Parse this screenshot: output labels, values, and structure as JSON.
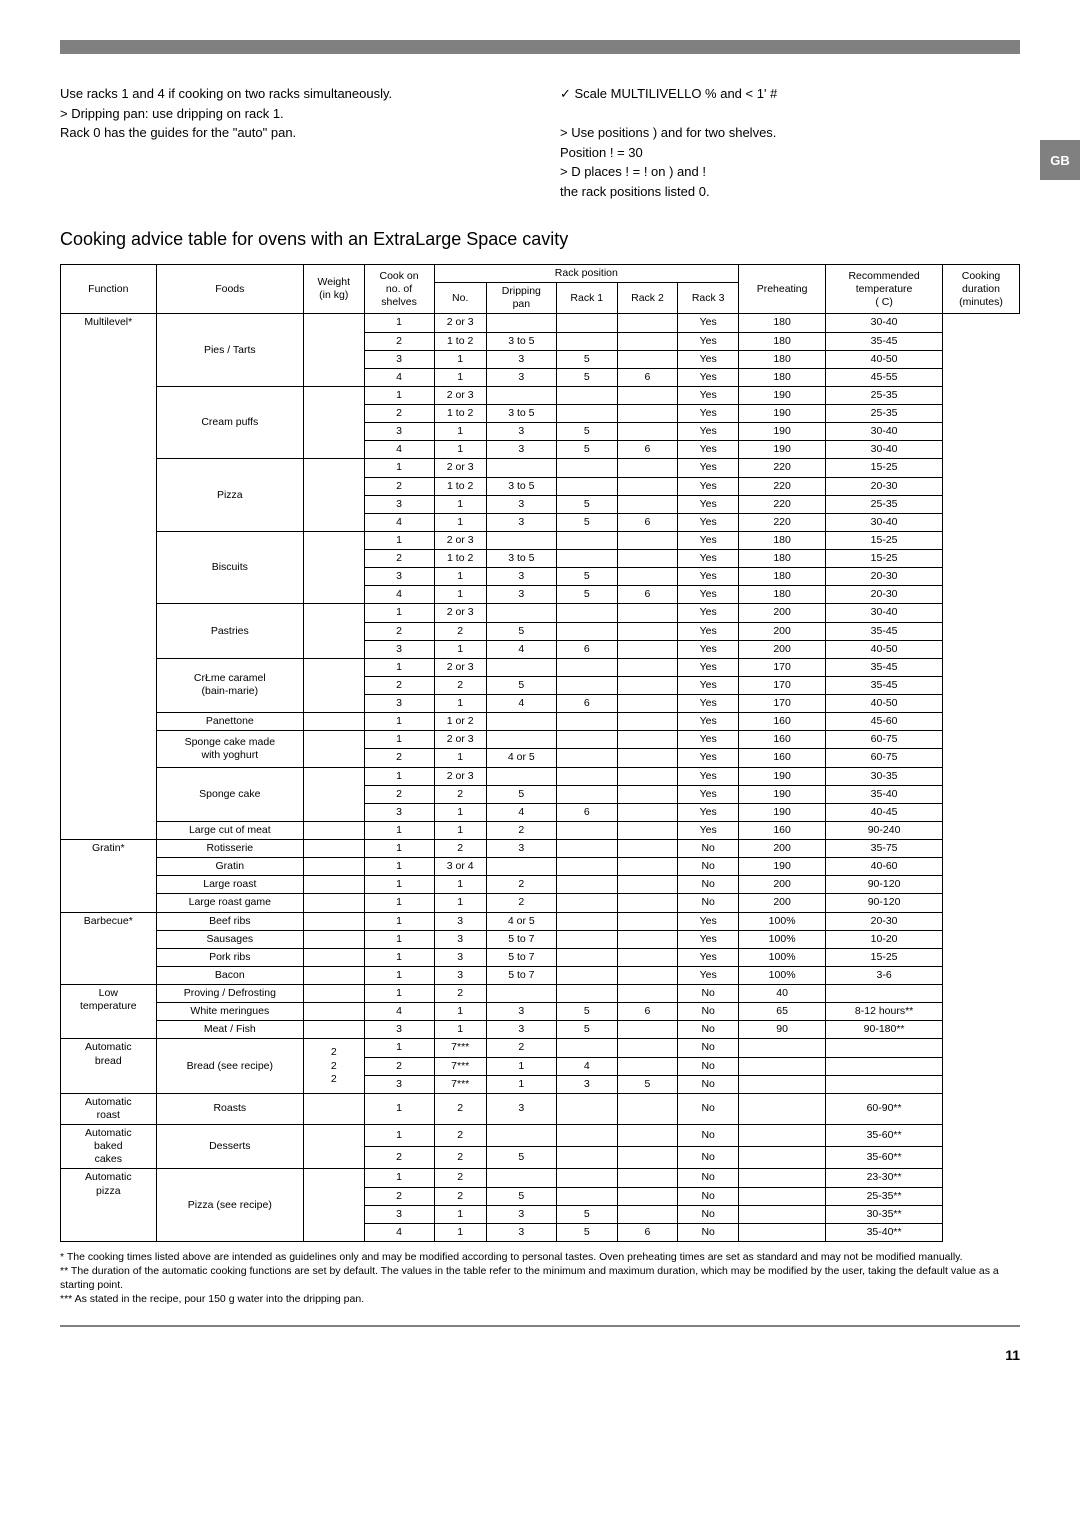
{
  "gb_label": "GB",
  "top_left_lines": [
    "Use racks 1 and 4 if cooking on two racks simultaneously.",
    "> Dripping pan: use dripping on rack 1.",
    "Rack 0 has the guides for the \"auto\" pan."
  ],
  "top_right_lines": [
    "✓ Scale MULTILIVELLO % and < 1' #",
    "",
    "> Use positions ) and for two shelves.",
    "Position   ! = 30",
    "> D places ! = ! on ) and !",
    " the rack positions listed 0."
  ],
  "table_title": "Cooking advice table for ovens with an ExtraLarge Space cavity",
  "headers": {
    "function": "Function",
    "foods": "Foods",
    "weight": "Weight\n(in kg)",
    "cook_on": "Cook on\nno. of\nshelves",
    "rack_position": "Rack position",
    "no": "No.",
    "dripping": "Dripping\npan",
    "rack1": "Rack 1",
    "rack2": "Rack 2",
    "rack3": "Rack 3",
    "preheating": "Preheating",
    "temp": "Recommended\ntemperature\n( C)",
    "duration": "Cooking\nduration\n(minutes)"
  },
  "functions": [
    {
      "name": "Multilevel*",
      "rows": [
        {
          "food": "Pies / Tarts",
          "sub": [
            {
              "no": "1",
              "dp": "2 or 3",
              "r1": "",
              "r2": "",
              "r3": "",
              "pre": "Yes",
              "t": "180",
              "d": "30-40"
            },
            {
              "no": "2",
              "dp": "1 to 2",
              "r1": "3 to 5",
              "r2": "",
              "r3": "",
              "pre": "Yes",
              "t": "180",
              "d": "35-45"
            },
            {
              "no": "3",
              "dp": "1",
              "r1": "3",
              "r2": "5",
              "r3": "",
              "pre": "Yes",
              "t": "180",
              "d": "40-50"
            },
            {
              "no": "4",
              "dp": "1",
              "r1": "3",
              "r2": "5",
              "r3": "6",
              "pre": "Yes",
              "t": "180",
              "d": "45-55"
            }
          ]
        },
        {
          "food": "Cream puffs",
          "sub": [
            {
              "no": "1",
              "dp": "2 or 3",
              "r1": "",
              "r2": "",
              "r3": "",
              "pre": "Yes",
              "t": "190",
              "d": "25-35"
            },
            {
              "no": "2",
              "dp": "1 to 2",
              "r1": "3 to 5",
              "r2": "",
              "r3": "",
              "pre": "Yes",
              "t": "190",
              "d": "25-35"
            },
            {
              "no": "3",
              "dp": "1",
              "r1": "3",
              "r2": "5",
              "r3": "",
              "pre": "Yes",
              "t": "190",
              "d": "30-40"
            },
            {
              "no": "4",
              "dp": "1",
              "r1": "3",
              "r2": "5",
              "r3": "6",
              "pre": "Yes",
              "t": "190",
              "d": "30-40"
            }
          ]
        },
        {
          "food": "Pizza",
          "sub": [
            {
              "no": "1",
              "dp": "2 or 3",
              "r1": "",
              "r2": "",
              "r3": "",
              "pre": "Yes",
              "t": "220",
              "d": "15-25"
            },
            {
              "no": "2",
              "dp": "1 to 2",
              "r1": "3 to 5",
              "r2": "",
              "r3": "",
              "pre": "Yes",
              "t": "220",
              "d": "20-30"
            },
            {
              "no": "3",
              "dp": "1",
              "r1": "3",
              "r2": "5",
              "r3": "",
              "pre": "Yes",
              "t": "220",
              "d": "25-35"
            },
            {
              "no": "4",
              "dp": "1",
              "r1": "3",
              "r2": "5",
              "r3": "6",
              "pre": "Yes",
              "t": "220",
              "d": "30-40"
            }
          ]
        },
        {
          "food": "Biscuits",
          "sub": [
            {
              "no": "1",
              "dp": "2 or 3",
              "r1": "",
              "r2": "",
              "r3": "",
              "pre": "Yes",
              "t": "180",
              "d": "15-25"
            },
            {
              "no": "2",
              "dp": "1 to 2",
              "r1": "3 to 5",
              "r2": "",
              "r3": "",
              "pre": "Yes",
              "t": "180",
              "d": "15-25"
            },
            {
              "no": "3",
              "dp": "1",
              "r1": "3",
              "r2": "5",
              "r3": "",
              "pre": "Yes",
              "t": "180",
              "d": "20-30"
            },
            {
              "no": "4",
              "dp": "1",
              "r1": "3",
              "r2": "5",
              "r3": "6",
              "pre": "Yes",
              "t": "180",
              "d": "20-30"
            }
          ]
        },
        {
          "food": "Pastries",
          "sub": [
            {
              "no": "1",
              "dp": "2 or 3",
              "r1": "",
              "r2": "",
              "r3": "",
              "pre": "Yes",
              "t": "200",
              "d": "30-40"
            },
            {
              "no": "2",
              "dp": "2",
              "r1": "5",
              "r2": "",
              "r3": "",
              "pre": "Yes",
              "t": "200",
              "d": "35-45"
            },
            {
              "no": "3",
              "dp": "1",
              "r1": "4",
              "r2": "6",
              "r3": "",
              "pre": "Yes",
              "t": "200",
              "d": "40-50"
            }
          ]
        },
        {
          "food": "CrŁme caramel\n(bain-marie)",
          "sub": [
            {
              "no": "1",
              "dp": "2 or 3",
              "r1": "",
              "r2": "",
              "r3": "",
              "pre": "Yes",
              "t": "170",
              "d": "35-45"
            },
            {
              "no": "2",
              "dp": "2",
              "r1": "5",
              "r2": "",
              "r3": "",
              "pre": "Yes",
              "t": "170",
              "d": "35-45"
            },
            {
              "no": "3",
              "dp": "1",
              "r1": "4",
              "r2": "6",
              "r3": "",
              "pre": "Yes",
              "t": "170",
              "d": "40-50"
            }
          ]
        },
        {
          "food": "Panettone",
          "sub": [
            {
              "no": "1",
              "dp": "1 or 2",
              "r1": "",
              "r2": "",
              "r3": "",
              "pre": "Yes",
              "t": "160",
              "d": "45-60"
            }
          ]
        },
        {
          "food": "Sponge cake made\nwith yoghurt",
          "sub": [
            {
              "no": "1",
              "dp": "2 or 3",
              "r1": "",
              "r2": "",
              "r3": "",
              "pre": "Yes",
              "t": "160",
              "d": "60-75"
            },
            {
              "no": "2",
              "dp": "1",
              "r1": "4 or 5",
              "r2": "",
              "r3": "",
              "pre": "Yes",
              "t": "160",
              "d": "60-75"
            }
          ]
        },
        {
          "food": "Sponge cake",
          "sub": [
            {
              "no": "1",
              "dp": "2 or 3",
              "r1": "",
              "r2": "",
              "r3": "",
              "pre": "Yes",
              "t": "190",
              "d": "30-35"
            },
            {
              "no": "2",
              "dp": "2",
              "r1": "5",
              "r2": "",
              "r3": "",
              "pre": "Yes",
              "t": "190",
              "d": "35-40"
            },
            {
              "no": "3",
              "dp": "1",
              "r1": "4",
              "r2": "6",
              "r3": "",
              "pre": "Yes",
              "t": "190",
              "d": "40-45"
            }
          ]
        },
        {
          "food": "Large cut of meat",
          "sub": [
            {
              "no": "1",
              "dp": "1",
              "r1": "2",
              "r2": "",
              "r3": "",
              "pre": "Yes",
              "t": "160",
              "d": "90-240"
            }
          ]
        }
      ]
    },
    {
      "name": "Gratin*",
      "rows": [
        {
          "food": "Rotisserie",
          "sub": [
            {
              "no": "1",
              "dp": "2",
              "r1": "3",
              "r2": "",
              "r3": "",
              "pre": "No",
              "t": "200",
              "d": "35-75"
            }
          ]
        },
        {
          "food": "Gratin",
          "sub": [
            {
              "no": "1",
              "dp": "3 or 4",
              "r1": "",
              "r2": "",
              "r3": "",
              "pre": "No",
              "t": "190",
              "d": "40-60"
            }
          ]
        },
        {
          "food": "Large roast",
          "sub": [
            {
              "no": "1",
              "dp": "1",
              "r1": "2",
              "r2": "",
              "r3": "",
              "pre": "No",
              "t": "200",
              "d": "90-120"
            }
          ]
        },
        {
          "food": "Large roast game",
          "sub": [
            {
              "no": "1",
              "dp": "1",
              "r1": "2",
              "r2": "",
              "r3": "",
              "pre": "No",
              "t": "200",
              "d": "90-120"
            }
          ]
        }
      ]
    },
    {
      "name": "Barbecue*",
      "rows": [
        {
          "food": "Beef ribs",
          "sub": [
            {
              "no": "1",
              "dp": "3",
              "r1": "4 or 5",
              "r2": "",
              "r3": "",
              "pre": "Yes",
              "t": "100%",
              "d": "20-30"
            }
          ]
        },
        {
          "food": "Sausages",
          "sub": [
            {
              "no": "1",
              "dp": "3",
              "r1": "5 to 7",
              "r2": "",
              "r3": "",
              "pre": "Yes",
              "t": "100%",
              "d": "10-20"
            }
          ]
        },
        {
          "food": "Pork ribs",
          "sub": [
            {
              "no": "1",
              "dp": "3",
              "r1": "5 to 7",
              "r2": "",
              "r3": "",
              "pre": "Yes",
              "t": "100%",
              "d": "15-25"
            }
          ]
        },
        {
          "food": "Bacon",
          "sub": [
            {
              "no": "1",
              "dp": "3",
              "r1": "5 to 7",
              "r2": "",
              "r3": "",
              "pre": "Yes",
              "t": "100%",
              "d": "3-6"
            }
          ]
        }
      ]
    },
    {
      "name": "Low\ntemperature",
      "rows": [
        {
          "food": "Proving / Defrosting",
          "sub": [
            {
              "no": "1",
              "dp": "2",
              "r1": "",
              "r2": "",
              "r3": "",
              "pre": "No",
              "t": "40",
              "d": ""
            }
          ]
        },
        {
          "food": "White meringues",
          "sub": [
            {
              "no": "4",
              "dp": "1",
              "r1": "3",
              "r2": "5",
              "r3": "6",
              "pre": "No",
              "t": "65",
              "d": "8-12 hours**"
            }
          ]
        },
        {
          "food": "Meat / Fish",
          "sub": [
            {
              "no": "3",
              "dp": "1",
              "r1": "3",
              "r2": "5",
              "r3": "",
              "pre": "No",
              "t": "90",
              "d": "90-180**"
            }
          ]
        }
      ]
    },
    {
      "name": "Automatic\nbread",
      "rows": [
        {
          "food": "Bread (see recipe)",
          "weights": [
            "2",
            "2",
            "2"
          ],
          "sub": [
            {
              "no": "1",
              "dp": "7***",
              "r1": "2",
              "r2": "",
              "r3": "",
              "pre": "No",
              "t": "",
              "d": ""
            },
            {
              "no": "2",
              "dp": "7***",
              "r1": "1",
              "r2": "4",
              "r3": "",
              "pre": "No",
              "t": "",
              "d": ""
            },
            {
              "no": "3",
              "dp": "7***",
              "r1": "1",
              "r2": "3",
              "r3": "5",
              "pre": "No",
              "t": "",
              "d": ""
            }
          ]
        }
      ]
    },
    {
      "name": "Automatic\nroast",
      "rows": [
        {
          "food": "Roasts",
          "sub": [
            {
              "no": "1",
              "dp": "2",
              "r1": "3",
              "r2": "",
              "r3": "",
              "pre": "No",
              "t": "",
              "d": "60-90**"
            }
          ]
        }
      ]
    },
    {
      "name": "Automatic\nbaked\ncakes",
      "rows": [
        {
          "food": "Desserts",
          "sub": [
            {
              "no": "1",
              "dp": "2",
              "r1": "",
              "r2": "",
              "r3": "",
              "pre": "No",
              "t": "",
              "d": "35-60**"
            },
            {
              "no": "2",
              "dp": "2",
              "r1": "5",
              "r2": "",
              "r3": "",
              "pre": "No",
              "t": "",
              "d": "35-60**"
            }
          ]
        }
      ]
    },
    {
      "name": "Automatic\npizza",
      "rows": [
        {
          "food": "Pizza (see recipe)",
          "sub": [
            {
              "no": "1",
              "dp": "2",
              "r1": "",
              "r2": "",
              "r3": "",
              "pre": "No",
              "t": "",
              "d": "23-30**"
            },
            {
              "no": "2",
              "dp": "2",
              "r1": "5",
              "r2": "",
              "r3": "",
              "pre": "No",
              "t": "",
              "d": "25-35**"
            },
            {
              "no": "3",
              "dp": "1",
              "r1": "3",
              "r2": "5",
              "r3": "",
              "pre": "No",
              "t": "",
              "d": "30-35**"
            },
            {
              "no": "4",
              "dp": "1",
              "r1": "3",
              "r2": "5",
              "r3": "6",
              "pre": "No",
              "t": "",
              "d": "35-40**"
            }
          ]
        }
      ]
    }
  ],
  "footnotes": [
    "* The cooking times listed above are intended as guidelines only and may be modified according to personal tastes. Oven preheating times are set as standard and may not be modified manually.",
    "** The duration of the automatic cooking functions are set by default. The values in the table refer to the minimum and maximum duration, which may be modified by the user, taking the default value as a starting point.",
    "*** As stated in the recipe, pour 150 g water into the dripping pan."
  ],
  "page_number": "11"
}
